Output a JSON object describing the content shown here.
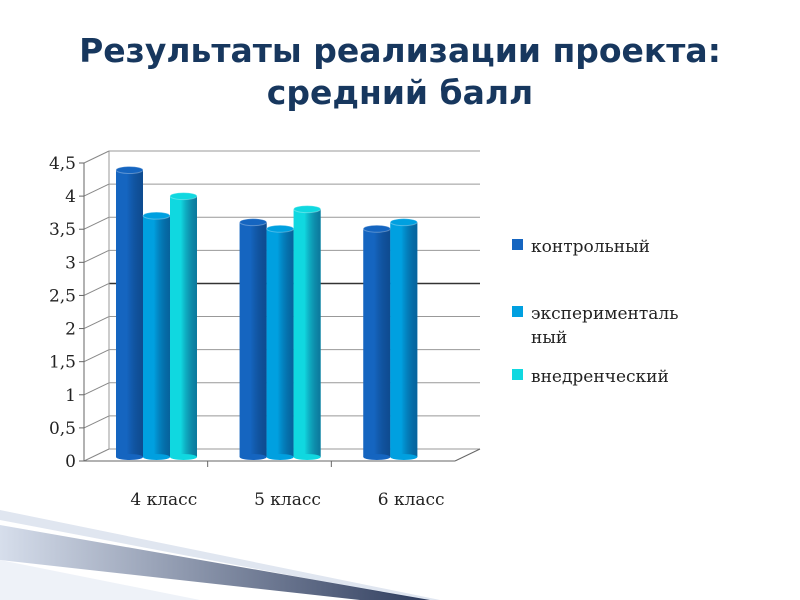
{
  "chart_data": {
    "type": "bar",
    "title": "Результаты реализации проекта: средний балл",
    "title_lines": [
      "Результаты реализации проекта:",
      "средний балл"
    ],
    "categories": [
      "4 класс",
      "5 класс",
      "6 класс"
    ],
    "series": [
      {
        "name": "контрольный",
        "values": [
          4.4,
          3.6,
          3.5
        ],
        "color": "#1565c0"
      },
      {
        "name": "экспериментальный",
        "legend_lines": [
          "эксперименталь",
          "ный"
        ],
        "values": [
          3.7,
          3.5,
          3.6
        ],
        "color": "#00a0e0"
      },
      {
        "name": "внедренческий",
        "values": [
          4.0,
          3.8,
          null
        ],
        "color": "#10d8e0"
      }
    ],
    "yticks": [
      "0",
      "0,5",
      "1",
      "1,5",
      "2",
      "2,5",
      "3",
      "3,5",
      "4",
      "4,5"
    ],
    "ylim": [
      0,
      4.5
    ],
    "grid": true,
    "legend_position": "right",
    "style": "3d-cylinder"
  }
}
